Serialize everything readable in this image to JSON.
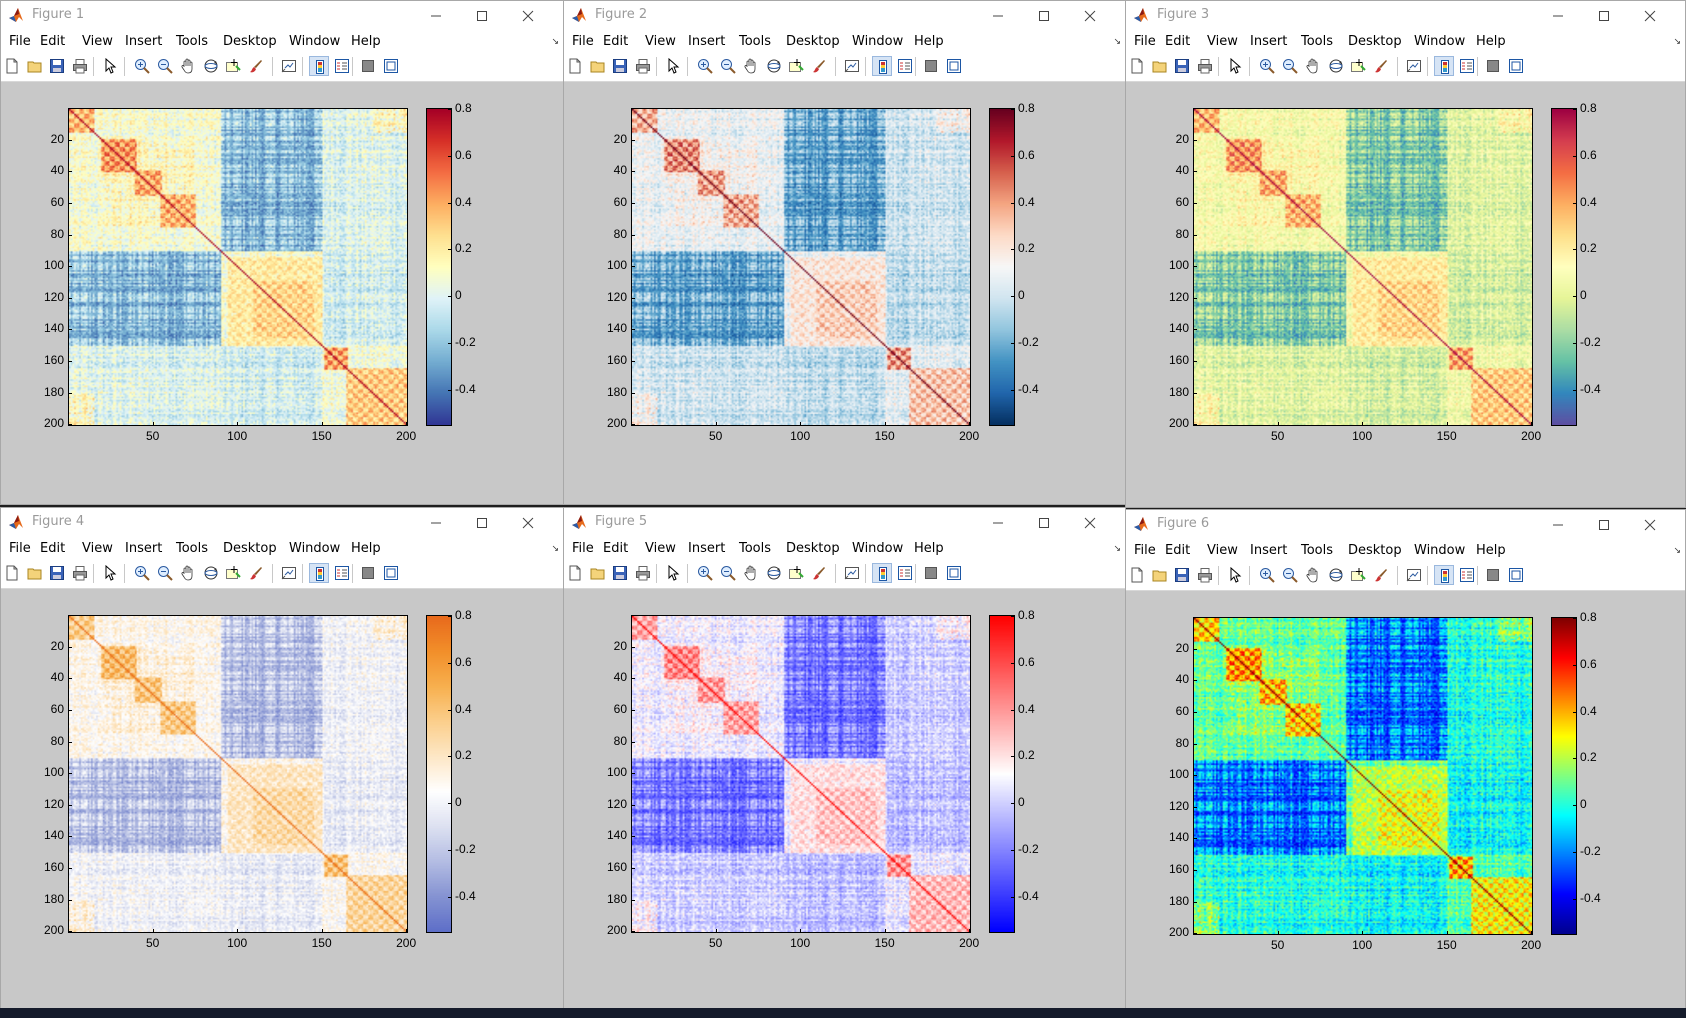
{
  "figures": [
    {
      "title": "Figure 1",
      "colormap": "rdylbu"
    },
    {
      "title": "Figure 2",
      "colormap": "rdbu"
    },
    {
      "title": "Figure 3",
      "colormap": "spectral"
    },
    {
      "title": "Figure 4",
      "colormap": "puor"
    },
    {
      "title": "Figure 5",
      "colormap": "bwr"
    },
    {
      "title": "Figure 6",
      "colormap": "jet"
    }
  ],
  "menu": [
    "File",
    "Edit",
    "View",
    "Insert",
    "Tools",
    "Desktop",
    "Window",
    "Help"
  ],
  "toolbar_icons": [
    "new-figure-icon",
    "open-file-icon",
    "save-icon",
    "print-icon",
    "edit-plot-arrow-icon",
    "zoom-in-icon",
    "zoom-out-icon",
    "pan-hand-icon",
    "rotate-3d-icon",
    "data-cursor-icon",
    "brush-icon",
    "link-plot-icon",
    "insert-colorbar-icon",
    "insert-legend-icon",
    "hide-plot-tools-icon",
    "show-plot-tools-icon"
  ],
  "chart_data": {
    "type": "heatmap",
    "description_matrix": "200 x 200 symmetric correlation matrix",
    "rows": 200,
    "cols": 200,
    "x_ticks": [
      "50",
      "100",
      "150",
      "200"
    ],
    "y_ticks": [
      "20",
      "40",
      "60",
      "80",
      "100",
      "120",
      "140",
      "160",
      "180",
      "200"
    ],
    "colorbar_ticks": [
      "0.8",
      "0.6",
      "0.4",
      "0.2",
      "0",
      "-0.2",
      "-0.4"
    ],
    "clim": [
      -0.55,
      0.8
    ],
    "blocks": [
      {
        "rows": [
          1,
          15
        ],
        "value": 0.45
      },
      {
        "rows": [
          20,
          40
        ],
        "value": 0.5
      },
      {
        "rows": [
          40,
          55
        ],
        "value": 0.45
      },
      {
        "rows": [
          55,
          75
        ],
        "value": 0.4
      },
      {
        "rows": [
          95,
          150
        ],
        "value": 0.25
      },
      {
        "rows": [
          110,
          145
        ],
        "value": 0.35
      },
      {
        "rows": [
          152,
          165
        ],
        "value": 0.55
      },
      {
        "rows": [
          165,
          200
        ],
        "value": 0.4
      }
    ]
  }
}
